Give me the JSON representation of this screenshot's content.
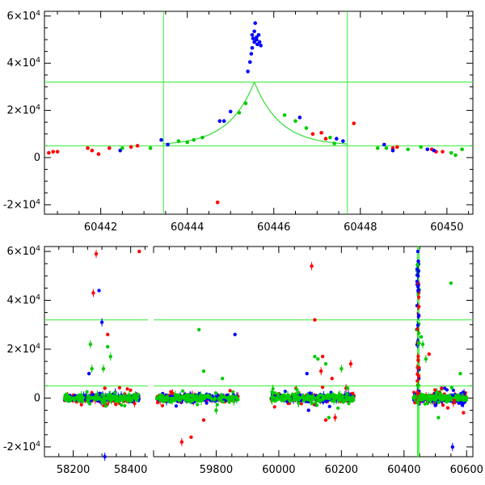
{
  "chart_data": [
    {
      "type": "scatter",
      "panel": "top",
      "xlim": [
        60440.7,
        60450.6
      ],
      "ylim": [
        -24000,
        62000
      ],
      "x_ticks": [
        "60442",
        "60444",
        "60446",
        "60448",
        "60450"
      ],
      "x_tick_values": [
        60442,
        60444,
        60446,
        60448,
        60450
      ],
      "y_ticks": [
        {
          "value": 60000,
          "mant": "6×10",
          "exp": "4"
        },
        {
          "value": 40000,
          "mant": "4×10",
          "exp": "4"
        },
        {
          "value": 20000,
          "mant": "2×10",
          "exp": "4"
        },
        {
          "value": 0,
          "mant": "0",
          "exp": ""
        },
        {
          "value": -20000,
          "mant": "-2×10",
          "exp": "4"
        }
      ],
      "hlines": [
        32000,
        5000
      ],
      "vlines": [
        60443.45,
        60447.7
      ],
      "model_curve": {
        "peak_x": 60445.55,
        "peak_y": 32000,
        "baseline": 5000,
        "tau": 0.6,
        "range": [
          60443.45,
          60447.7
        ]
      },
      "series": [
        {
          "color": "#ff0000",
          "x": [
            60440.8,
            60440.9,
            60441.0,
            60441.7,
            60441.8,
            60441.95,
            60442.2,
            60442.7,
            60442.85,
            60444.7,
            60446.9,
            60447.1,
            60447.2,
            60447.85,
            60448.75,
            60448.85,
            60449.65,
            60449.75,
            60449.9
          ],
          "y": [
            2000,
            2500,
            2500,
            4000,
            3000,
            1500,
            4000,
            4500,
            5000,
            -19000,
            10000,
            10500,
            8000,
            14500,
            4000,
            4500,
            3500,
            2500,
            2500
          ]
        },
        {
          "color": "#0000ff",
          "x": [
            60442.45,
            60443.4,
            60443.55,
            60444.75,
            60444.85,
            60445.0,
            60445.4,
            60445.45,
            60445.48,
            60445.5,
            60445.52,
            60445.55,
            60445.57,
            60445.6,
            60445.62,
            60445.65,
            60445.67,
            60445.7,
            60445.5,
            60445.55,
            60445.6,
            60446.6,
            60447.45,
            60447.6,
            60448.55,
            60448.75,
            60449.55,
            60449.7
          ],
          "y": [
            3000,
            7500,
            5500,
            15500,
            15500,
            19500,
            36500,
            40500,
            44000,
            46500,
            50500,
            49000,
            57000,
            51000,
            48000,
            52000,
            49000,
            47500,
            52000,
            53500,
            50000,
            17000,
            8000,
            7000,
            5500,
            3000,
            3500,
            3000
          ]
        },
        {
          "color": "#00cc00",
          "x": [
            60442.5,
            60443.15,
            60443.8,
            60444.0,
            60444.15,
            60444.35,
            60445.2,
            60445.35,
            60446.25,
            60446.5,
            60446.75,
            60447.3,
            60447.4,
            60448.4,
            60448.6,
            60449.1,
            60449.4,
            60450.1,
            60450.2,
            60450.35
          ],
          "y": [
            4000,
            4000,
            7000,
            6500,
            7500,
            8500,
            19000,
            23000,
            18000,
            15500,
            12500,
            8500,
            6000,
            4000,
            4000,
            3500,
            4500,
            2000,
            1000,
            3500
          ]
        }
      ]
    },
    {
      "type": "scatter",
      "panel": "bottom",
      "xlim": [
        58100,
        60620
      ],
      "axis_break": [
        58460,
        59600
      ],
      "ylim": [
        -24000,
        62000
      ],
      "x_ticks": [
        "58200",
        "58400",
        "59800",
        "60000",
        "60200",
        "60400",
        "60600"
      ],
      "x_tick_values": [
        58200,
        58400,
        59800,
        60000,
        60200,
        60400,
        60600
      ],
      "y_ticks": [
        {
          "value": 60000,
          "mant": "6×10",
          "exp": "4"
        },
        {
          "value": 40000,
          "mant": "4×10",
          "exp": "4"
        },
        {
          "value": 20000,
          "mant": "2×10",
          "exp": "4"
        },
        {
          "value": 0,
          "mant": "0",
          "exp": ""
        },
        {
          "value": -20000,
          "mant": "-2×10",
          "exp": "4"
        }
      ],
      "hlines": [
        32000,
        5000
      ],
      "vlines": [
        60443.45,
        60447.7
      ],
      "seasons": [
        [
          58170,
          58430
        ],
        [
          59610,
          59870
        ],
        [
          59975,
          60240
        ],
        [
          60430,
          60600
        ]
      ],
      "outliers": [
        {
          "color": "#ff0000",
          "x": [
            58270,
            58280,
            58320,
            58310,
            58430,
            59690,
            59720,
            59760,
            60105,
            60115,
            60135,
            60140,
            60150,
            60170,
            60180,
            60215,
            60230,
            60480,
            60520,
            60540,
            60560,
            60590
          ],
          "y": [
            43000,
            59000,
            26000,
            4000,
            60000,
            -18000,
            -16000,
            -9000,
            54000,
            32000,
            11000,
            17000,
            -9000,
            8000,
            -8000,
            4000,
            14000,
            18000,
            4000,
            -4000,
            -1000,
            -6000
          ]
        },
        {
          "color": "#0000ff",
          "x": [
            58255,
            58290,
            58300,
            58310,
            59860,
            60090,
            60095,
            60100,
            60500,
            60530,
            60555,
            60580
          ],
          "y": [
            10000,
            44000,
            31000,
            -24000,
            26000,
            10000,
            -5000,
            2000,
            -3000,
            4000,
            -20000,
            -2000
          ]
        },
        {
          "color": "#00cc00",
          "x": [
            58260,
            58265,
            58305,
            58320,
            58330,
            59745,
            59760,
            59800,
            59820,
            60115,
            60125,
            60150,
            60160,
            60200,
            60220,
            60440,
            60455,
            60460,
            60470,
            60510,
            60550,
            60580
          ],
          "y": [
            22000,
            12000,
            12000,
            21000,
            17000,
            28000,
            11000,
            -5000,
            8000,
            17000,
            16000,
            14000,
            -8000,
            12000,
            4000,
            28000,
            25000,
            22000,
            16000,
            -8000,
            47000,
            10000
          ]
        }
      ],
      "peak_points": {
        "x": [
          60444,
          60445,
          60446,
          60447,
          60446,
          60445
        ],
        "y": [
          60000,
          50000,
          46000,
          52000,
          56000,
          44000
        ]
      }
    }
  ]
}
